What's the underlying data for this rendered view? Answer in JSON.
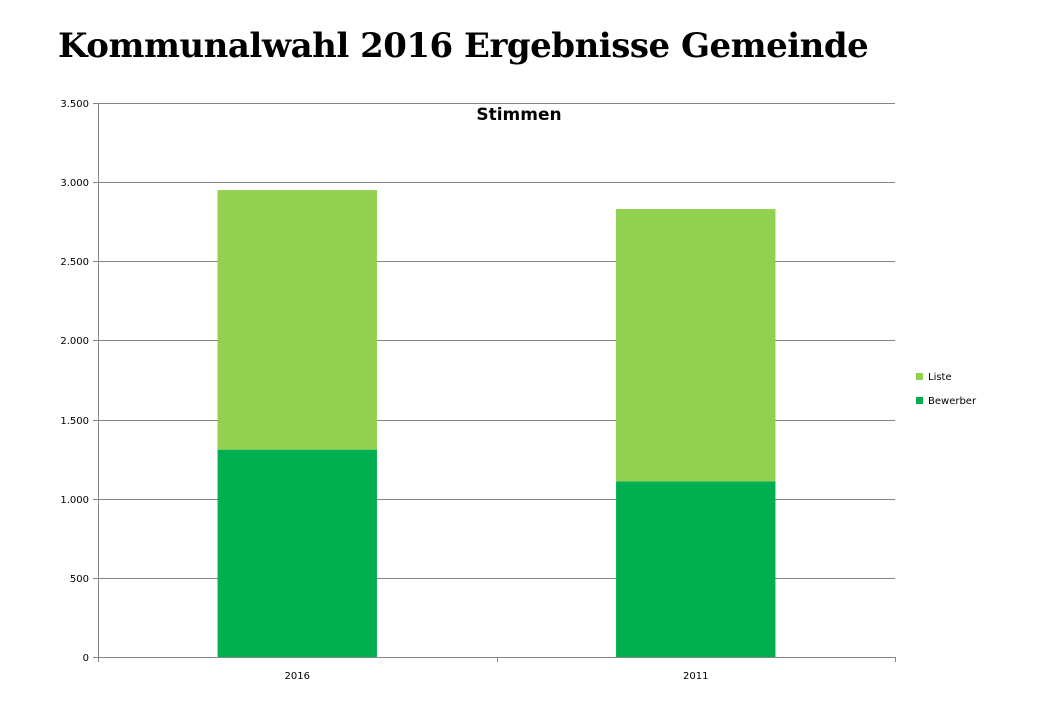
{
  "page": {
    "title": "Kommunalwahl 2016 Ergebnisse Gemeinde"
  },
  "chart_data": {
    "type": "bar",
    "stacked": true,
    "title": "Stimmen",
    "categories": [
      "2016",
      "2011"
    ],
    "series": [
      {
        "name": "Bewerber",
        "color": "#00b050",
        "values": [
          1310,
          1110
        ]
      },
      {
        "name": "Liste",
        "color": "#92d050",
        "values": [
          1640,
          1720
        ]
      }
    ],
    "ylim": [
      0,
      3500
    ],
    "yticks": [
      0,
      500,
      1000,
      1500,
      2000,
      2500,
      3000,
      3500
    ],
    "ytick_labels": [
      "0",
      "500",
      "1.000",
      "1.500",
      "2.000",
      "2.500",
      "3.000",
      "3.500"
    ],
    "xlabel": "",
    "ylabel": "",
    "grid": true,
    "legend": {
      "position": "right",
      "order": [
        "Liste",
        "Bewerber"
      ]
    }
  }
}
